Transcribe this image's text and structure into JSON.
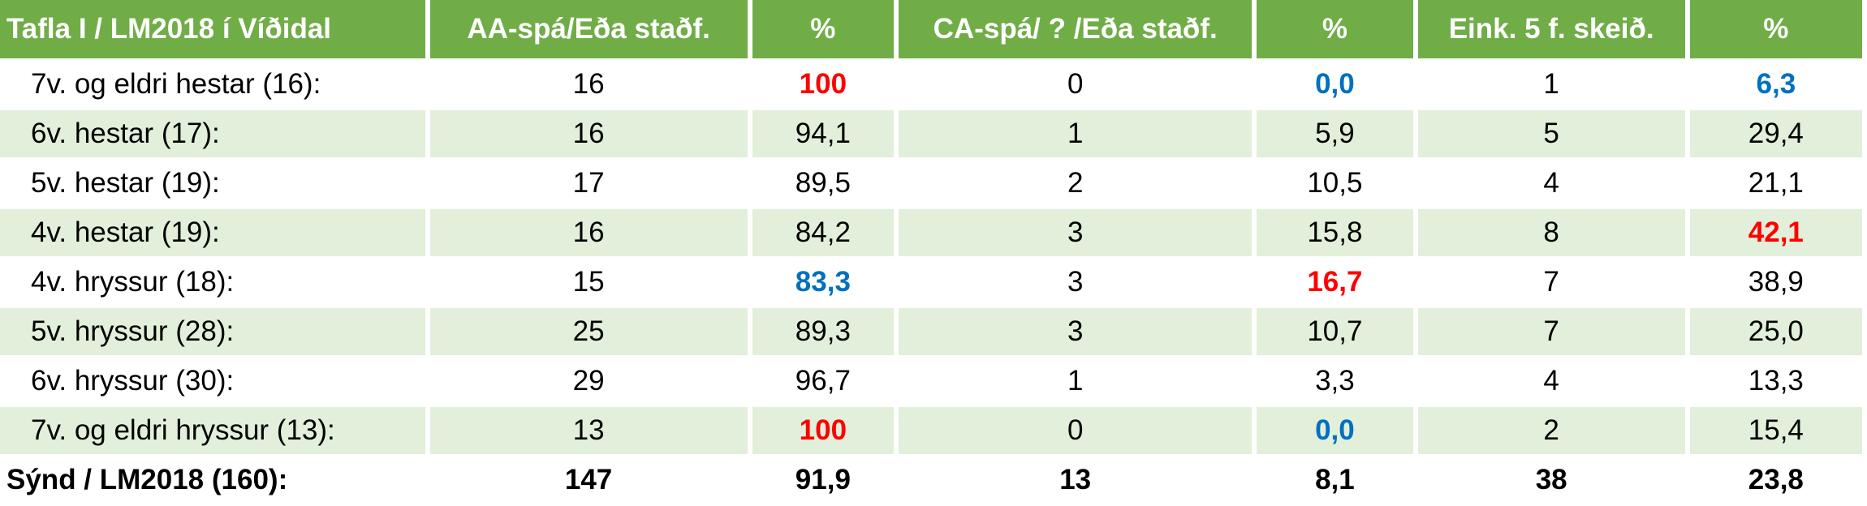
{
  "colors": {
    "header": "#70AD47",
    "band": "#E2EFDA",
    "highlight_red": "#FF0000",
    "highlight_blue": "#0070C0"
  },
  "headers": [
    "Tafla I / LM2018 í Víðidal",
    "AA-spá/Eða staðf.",
    "%",
    "CA-spá/ ? /Eða staðf.",
    "%",
    "Eink. 5 f. skeið.",
    "%"
  ],
  "rows": [
    {
      "cells": [
        "7v. og eldri hestar (16):",
        "16",
        "100",
        "0",
        "0,0",
        "1",
        "6,3"
      ],
      "hl": [
        "",
        "",
        "red",
        "",
        "blue",
        "",
        "blue"
      ]
    },
    {
      "cells": [
        "6v. hestar (17):",
        "16",
        "94,1",
        "1",
        "5,9",
        "5",
        "29,4"
      ],
      "hl": [
        "",
        "",
        "",
        "",
        "",
        "",
        ""
      ]
    },
    {
      "cells": [
        "5v. hestar (19):",
        "17",
        "89,5",
        "2",
        "10,5",
        "4",
        "21,1"
      ],
      "hl": [
        "",
        "",
        "",
        "",
        "",
        "",
        ""
      ]
    },
    {
      "cells": [
        "4v. hestar (19):",
        "16",
        "84,2",
        "3",
        "15,8",
        "8",
        "42,1"
      ],
      "hl": [
        "",
        "",
        "",
        "",
        "",
        "",
        "red"
      ]
    },
    {
      "cells": [
        "4v. hryssur (18):",
        "15",
        "83,3",
        "3",
        "16,7",
        "7",
        "38,9"
      ],
      "hl": [
        "",
        "",
        "blue",
        "",
        "red",
        "",
        ""
      ]
    },
    {
      "cells": [
        "5v. hryssur (28):",
        "25",
        "89,3",
        "3",
        "10,7",
        "7",
        "25,0"
      ],
      "hl": [
        "",
        "",
        "",
        "",
        "",
        "",
        ""
      ]
    },
    {
      "cells": [
        "6v. hryssur (30):",
        "29",
        "96,7",
        "1",
        "3,3",
        "4",
        "13,3"
      ],
      "hl": [
        "",
        "",
        "",
        "",
        "",
        "",
        ""
      ]
    },
    {
      "cells": [
        "7v. og eldri hryssur (13):",
        "13",
        "100",
        "0",
        "0,0",
        "2",
        "15,4"
      ],
      "hl": [
        "",
        "",
        "red",
        "",
        "blue",
        "",
        ""
      ]
    }
  ],
  "total": [
    "Sýnd / LM2018 (160):",
    "147",
    "91,9",
    "13",
    "8,1",
    "38",
    "23,8"
  ]
}
